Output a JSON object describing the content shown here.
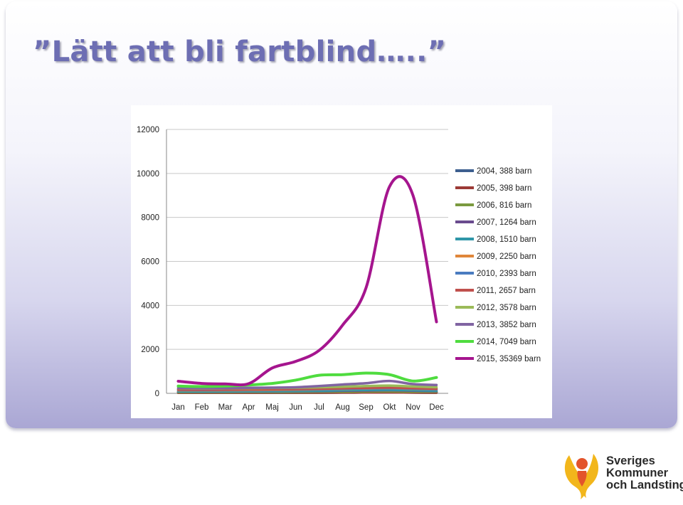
{
  "slide": {
    "title": "”Lätt att bli fartblind…..”"
  },
  "logo": {
    "line1": "Sveriges",
    "line2": "Kommuner",
    "line3": "och Landsting"
  },
  "chart_data": {
    "type": "line",
    "title": "",
    "xlabel": "",
    "ylabel": "",
    "categories": [
      "Jan",
      "Feb",
      "Mar",
      "Apr",
      "Maj",
      "Jun",
      "Jul",
      "Aug",
      "Sep",
      "Okt",
      "Nov",
      "Dec"
    ],
    "ylim": [
      0,
      12000
    ],
    "yticks": [
      0,
      2000,
      4000,
      6000,
      8000,
      10000,
      12000
    ],
    "grid": true,
    "legend": "right",
    "series": [
      {
        "name": "2004, 388 barn",
        "color": "#3d5f8f",
        "values": [
          25,
          25,
          25,
          25,
          25,
          25,
          30,
          35,
          40,
          45,
          35,
          30
        ]
      },
      {
        "name": "2005, 398 barn",
        "color": "#9c3a36",
        "values": [
          25,
          25,
          25,
          25,
          30,
          30,
          30,
          35,
          40,
          45,
          35,
          30
        ]
      },
      {
        "name": "2006, 816 barn",
        "color": "#7b9a3f",
        "values": [
          50,
          50,
          50,
          55,
          55,
          60,
          65,
          75,
          85,
          90,
          75,
          65
        ]
      },
      {
        "name": "2007, 1264 barn",
        "color": "#6a4b8e",
        "values": [
          80,
          75,
          80,
          85,
          90,
          95,
          100,
          120,
          130,
          140,
          120,
          100
        ]
      },
      {
        "name": "2008, 1510 barn",
        "color": "#2f96a8",
        "values": [
          90,
          90,
          95,
          100,
          105,
          110,
          120,
          140,
          155,
          160,
          140,
          120
        ]
      },
      {
        "name": "2009, 2250 barn",
        "color": "#e0863a",
        "values": [
          140,
          140,
          145,
          150,
          155,
          165,
          180,
          200,
          220,
          230,
          205,
          180
        ]
      },
      {
        "name": "2010, 2393 barn",
        "color": "#4a7cc0",
        "values": [
          160,
          155,
          160,
          170,
          175,
          180,
          195,
          210,
          230,
          240,
          215,
          190
        ]
      },
      {
        "name": "2011, 2657 barn",
        "color": "#c0504d",
        "values": [
          170,
          165,
          170,
          180,
          185,
          195,
          210,
          230,
          250,
          260,
          235,
          210
        ]
      },
      {
        "name": "2012, 3578 barn",
        "color": "#9bbb59",
        "values": [
          230,
          220,
          225,
          235,
          245,
          255,
          275,
          300,
          330,
          350,
          310,
          280
        ]
      },
      {
        "name": "2013, 3852 barn",
        "color": "#8064a2",
        "values": [
          240,
          230,
          235,
          250,
          260,
          275,
          330,
          400,
          460,
          560,
          420,
          380
        ]
      },
      {
        "name": "2014, 7049 barn",
        "color": "#4fdc3f",
        "values": [
          330,
          310,
          330,
          380,
          450,
          600,
          820,
          850,
          920,
          850,
          560,
          720
        ]
      },
      {
        "name": "2015, 35369 barn",
        "color": "#a5158e",
        "values": [
          550,
          450,
          430,
          440,
          1150,
          1450,
          1950,
          3100,
          4800,
          9400,
          9000,
          3250
        ]
      }
    ]
  }
}
